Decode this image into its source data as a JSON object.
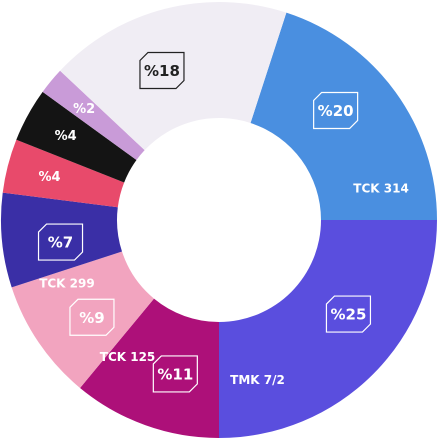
{
  "chart_data": {
    "type": "donut",
    "categories": [
      "TCK 314",
      "TMK 7/2",
      "TCK 125",
      "TCK 299",
      null,
      null,
      null,
      null,
      null
    ],
    "values": [
      20,
      25,
      11,
      9,
      7,
      4,
      4,
      2,
      18
    ],
    "value_labels": [
      "%20",
      "%25",
      "%11",
      "%9",
      "%7",
      "%4",
      "%4",
      "%2",
      "%18"
    ],
    "colors": [
      "#4a8fe0",
      "#5a4ede",
      "#ad1079",
      "#f2a4bf",
      "#3a2fa6",
      "#e84a6b",
      "#141414",
      "#c99bd8",
      "#f0edf4"
    ]
  }
}
